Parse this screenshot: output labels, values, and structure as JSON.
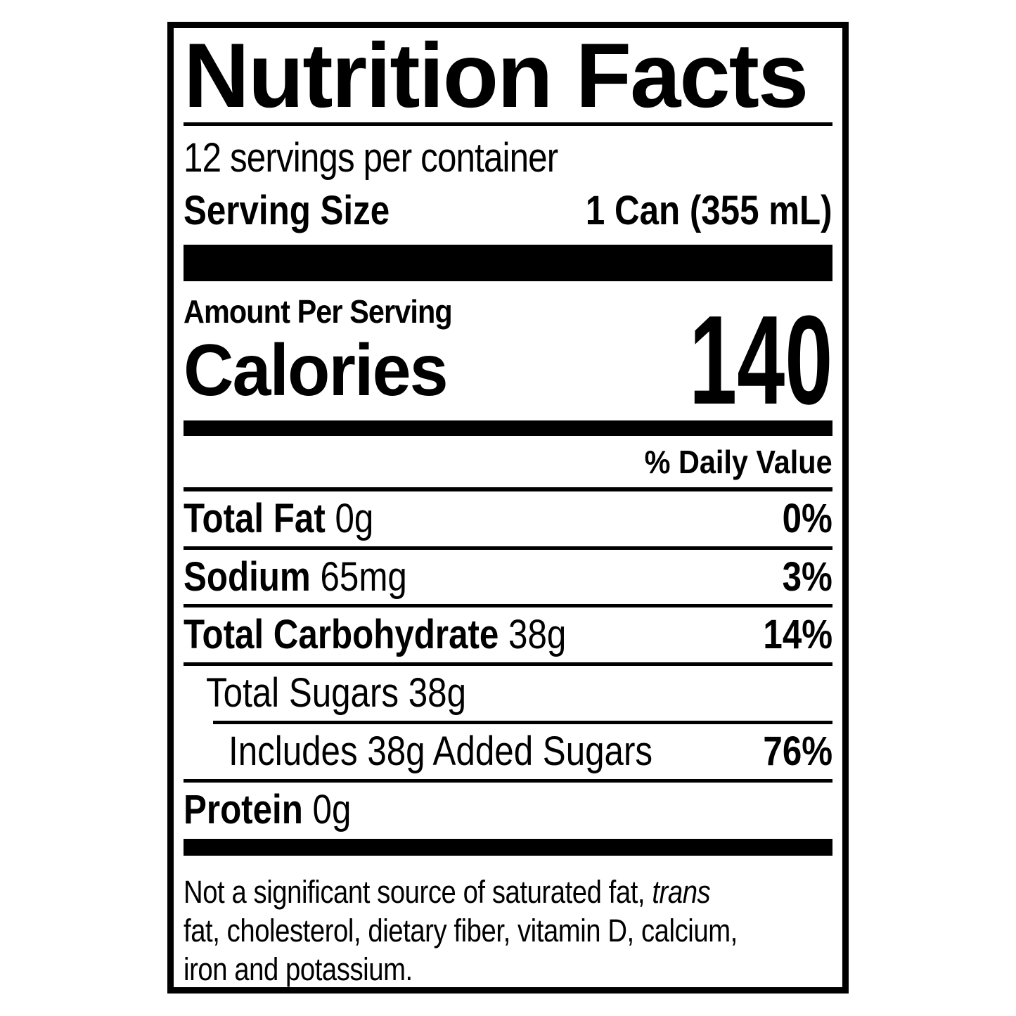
{
  "label": {
    "title": "Nutrition Facts",
    "servings_per_container": "12 servings per container",
    "serving_size_label": "Serving Size",
    "serving_size_value": "1 Can (355 mL)",
    "amount_per_serving": "Amount Per Serving",
    "calories_label": "Calories",
    "calories_value": "140",
    "daily_value_header": "% Daily Value",
    "rows": [
      {
        "label": "Total Fat",
        "amount": "0g",
        "dv": "0%"
      },
      {
        "label": "Sodium",
        "amount": "65mg",
        "dv": "3%"
      },
      {
        "label": "Total Carbohydrate",
        "amount": "38g",
        "dv": "14%"
      },
      {
        "label": "Total Sugars",
        "amount": "38g",
        "dv": ""
      },
      {
        "label": "Includes 38g Added Sugars",
        "amount": "",
        "dv": "76%"
      },
      {
        "label": "Protein",
        "amount": "0g",
        "dv": ""
      }
    ],
    "footnote": {
      "line1_regular": "Not a significant source of saturated fat, ",
      "line1_italic": "trans",
      "line2": "fat, cholesterol, dietary fiber, vitamin D, calcium,",
      "line3": "iron and potassium."
    },
    "colors": {
      "ink": "#000000",
      "background": "#ffffff"
    }
  }
}
